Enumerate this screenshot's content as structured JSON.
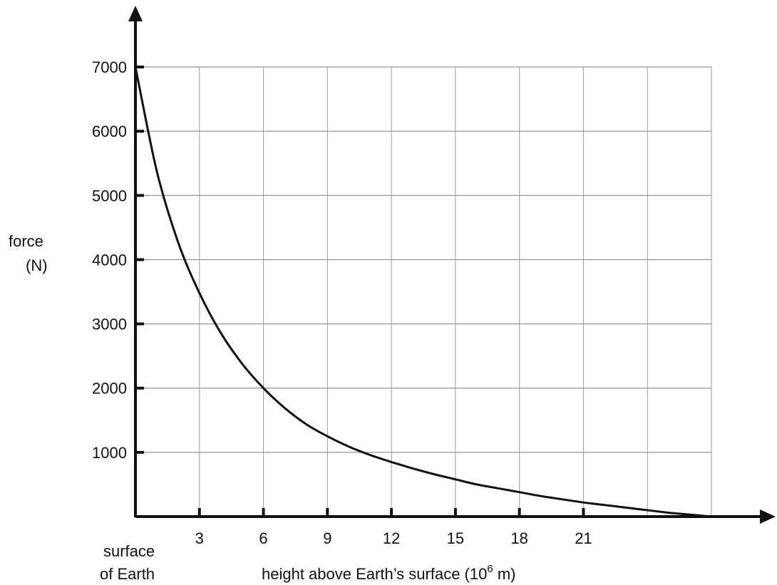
{
  "chart_data": {
    "type": "line",
    "title": "",
    "ylabel_line1": "force",
    "ylabel_line2": "(N)",
    "xlabel_main": "height above Earth’s surface (10",
    "xlabel_sup": "6",
    "xlabel_tail": " m)",
    "x_origin_label_line1": "surface",
    "x_origin_label_line2": "of Earth",
    "xlim": [
      0,
      27
    ],
    "ylim": [
      0,
      7000
    ],
    "x_ticks": [
      3,
      6,
      9,
      12,
      15,
      18,
      21
    ],
    "x_tick_labels": [
      "3",
      "6",
      "9",
      "12",
      "15",
      "18",
      "21"
    ],
    "x_gridlines": [
      3,
      6,
      9,
      12,
      15,
      18,
      21,
      24,
      27
    ],
    "y_ticks": [
      1000,
      2000,
      3000,
      4000,
      5000,
      6000,
      7000
    ],
    "y_tick_labels": [
      "1000",
      "2000",
      "3000",
      "4000",
      "5000",
      "6000",
      "7000"
    ],
    "grid": true,
    "series": [
      {
        "x": [
          0,
          1,
          2,
          3,
          4,
          5,
          6,
          7,
          8,
          9,
          10,
          11,
          12,
          13,
          14,
          15,
          16,
          17,
          18,
          19,
          20,
          21,
          22,
          23,
          24,
          25,
          26,
          27
        ],
        "y": [
          7000,
          5380,
          4270,
          3480,
          2860,
          2380,
          2000,
          1690,
          1440,
          1250,
          1090,
          960,
          850,
          750,
          660,
          580,
          500,
          440,
          380,
          320,
          270,
          220,
          180,
          140,
          100,
          60,
          30,
          0
        ],
        "color": "#111111"
      }
    ]
  }
}
